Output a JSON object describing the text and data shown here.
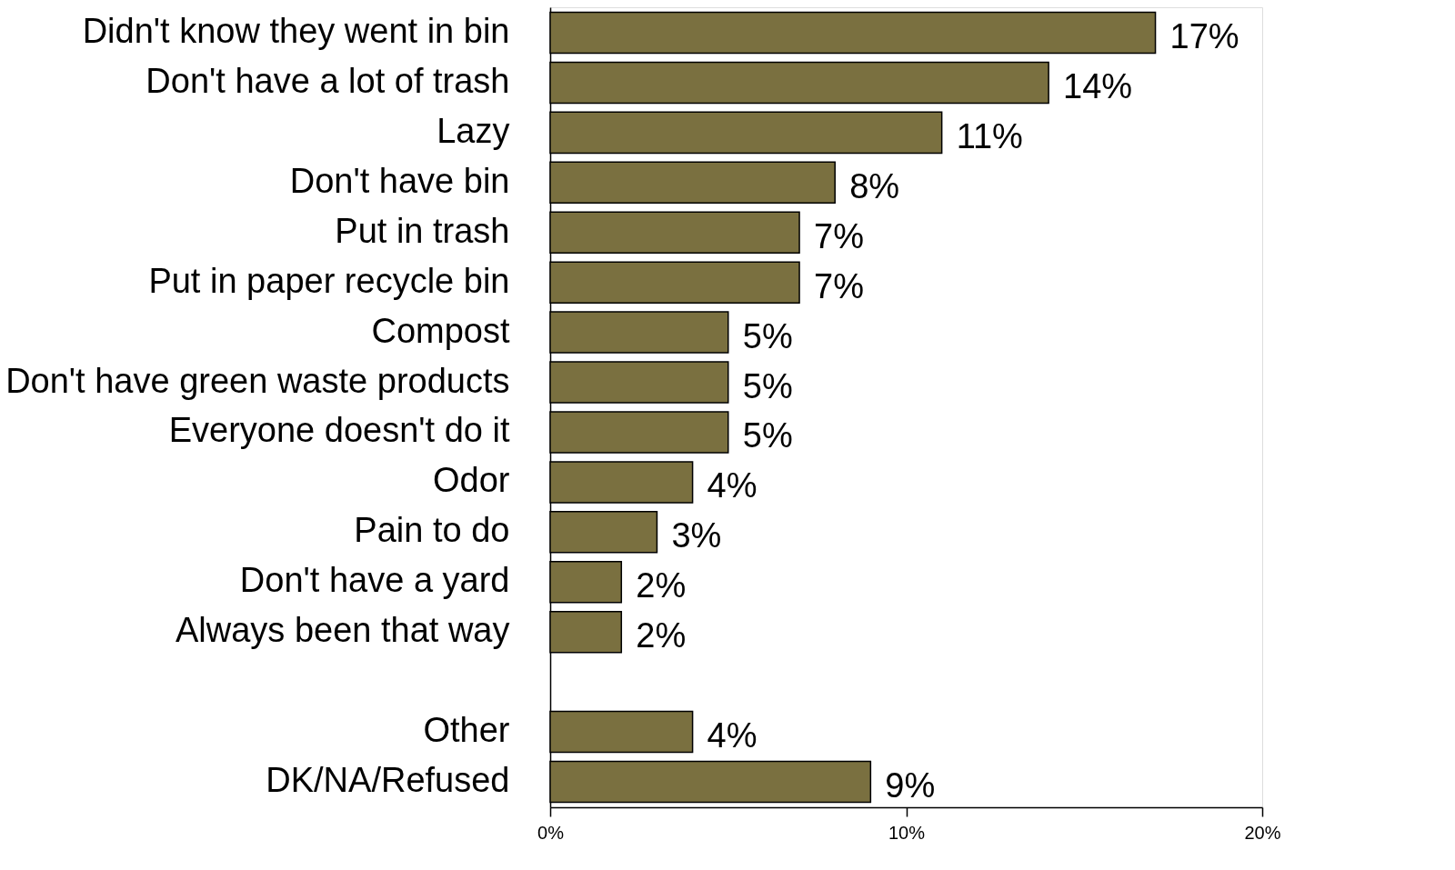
{
  "chart_data": {
    "type": "bar",
    "orientation": "horizontal",
    "categories": [
      "Didn't know they went in bin",
      "Don't have a lot of trash",
      "Lazy",
      "Don't have bin",
      "Put in trash",
      "Put in paper recycle bin",
      "Compost",
      "Don't have green waste products",
      "Everyone doesn't do it",
      "Odor",
      "Pain to do",
      "Don't have a yard",
      "Always been that way",
      null,
      "Other",
      "DK/NA/Refused"
    ],
    "values": [
      17,
      14,
      11,
      8,
      7,
      7,
      5,
      5,
      5,
      4,
      3,
      2,
      2,
      null,
      4,
      9
    ],
    "value_labels": [
      "17%",
      "14%",
      "11%",
      "8%",
      "7%",
      "7%",
      "5%",
      "5%",
      "5%",
      "4%",
      "3%",
      "2%",
      "2%",
      null,
      "4%",
      "9%"
    ],
    "color": "#7a7040",
    "xlim": [
      0,
      20
    ],
    "xticks": [
      {
        "value": 0,
        "label": "0%"
      },
      {
        "value": 10,
        "label": "10%"
      },
      {
        "value": 20,
        "label": "20%"
      }
    ],
    "grid": false
  }
}
